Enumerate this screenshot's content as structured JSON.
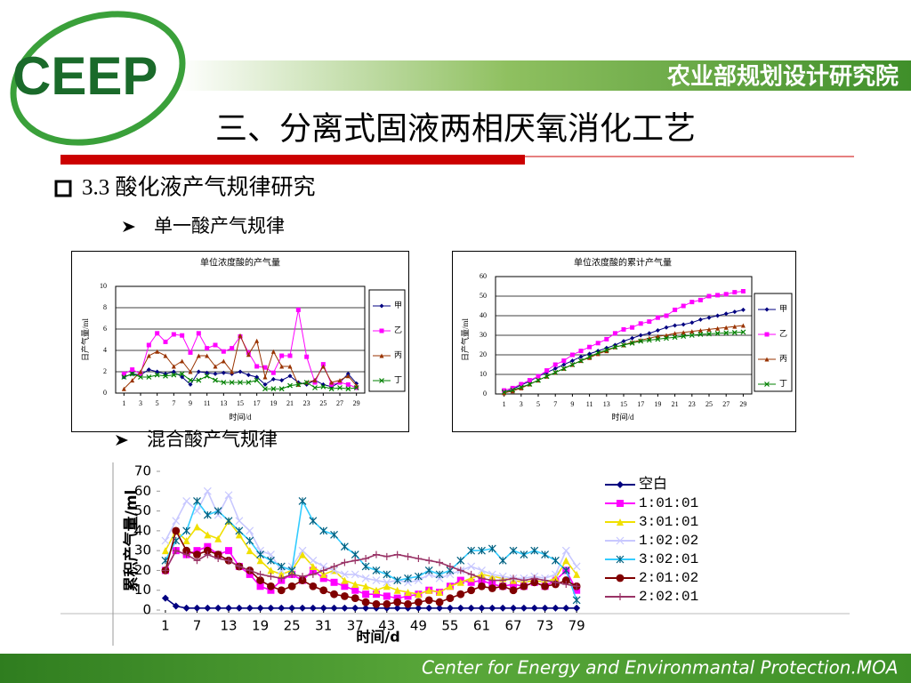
{
  "header": {
    "logo": "CEEP",
    "org": "农业部规划设计研究院",
    "title": "三、分离式固液两相厌氧消化工艺"
  },
  "bullets": {
    "section": "3.3 酸化液产气规律研究",
    "item1": "单一酸产气规律",
    "item2": "混合酸产气规律"
  },
  "footer": "Center for Energy and Environmantal Protection.MOA",
  "chart_data": [
    {
      "type": "line",
      "title": "单位浓度酸的产气量",
      "x_label": "时间/d",
      "y_label": "日产气量/ml",
      "x": [
        1,
        2,
        3,
        4,
        5,
        6,
        7,
        8,
        9,
        10,
        11,
        12,
        13,
        14,
        15,
        16,
        17,
        18,
        19,
        20,
        21,
        22,
        23,
        24,
        25,
        26,
        27,
        28,
        29
      ],
      "xlim": [
        0,
        30
      ],
      "xticks": [
        1,
        3,
        5,
        7,
        9,
        11,
        13,
        15,
        17,
        19,
        21,
        23,
        25,
        27,
        29
      ],
      "ylim": [
        0,
        10
      ],
      "yticks": [
        0,
        2,
        4,
        6,
        8,
        10
      ],
      "grid": true,
      "legend": "right",
      "series": [
        {
          "name": "甲",
          "color": "#000080",
          "marker": "diamond",
          "values": [
            1.5,
            1.8,
            1.7,
            2.2,
            2.0,
            1.8,
            2.0,
            1.5,
            0.8,
            2.0,
            1.9,
            1.8,
            1.9,
            1.8,
            2.0,
            1.7,
            1.5,
            0.8,
            1.3,
            1.2,
            1.6,
            1.0,
            0.8,
            1.2,
            0.8,
            0.6,
            1.0,
            1.8,
            0.9
          ]
        },
        {
          "name": "乙",
          "color": "#ff00ff",
          "marker": "square",
          "values": [
            1.8,
            2.2,
            1.8,
            4.5,
            5.6,
            4.8,
            5.5,
            5.4,
            3.8,
            5.6,
            4.2,
            4.5,
            3.9,
            4.2,
            5.3,
            3.8,
            2.5,
            2.4,
            1.9,
            3.5,
            3.5,
            7.8,
            3.4,
            1.0,
            2.7,
            0.8,
            1.0,
            0.8,
            0.5
          ]
        },
        {
          "name": "丙",
          "color": "#993300",
          "marker": "triangle",
          "values": [
            0.4,
            1.2,
            2.0,
            3.5,
            3.9,
            3.5,
            2.5,
            3.0,
            2.0,
            3.5,
            3.5,
            2.5,
            3.0,
            2.0,
            5.4,
            3.6,
            4.9,
            1.5,
            3.9,
            2.5,
            2.5,
            0.8,
            1.0,
            1.2,
            2.5,
            1.0,
            1.2,
            1.6,
            0.7
          ]
        },
        {
          "name": "丁",
          "color": "#008000",
          "marker": "x",
          "values": [
            1.5,
            1.8,
            1.5,
            1.5,
            1.7,
            1.6,
            1.7,
            1.8,
            1.2,
            1.2,
            1.6,
            1.2,
            1.0,
            1.0,
            1.0,
            1.0,
            1.2,
            0.4,
            0.4,
            0.4,
            0.7,
            0.8,
            1.0,
            0.5,
            0.6,
            0.4,
            0.5,
            0.4,
            0.5
          ]
        }
      ]
    },
    {
      "type": "line",
      "title": "单位浓度酸的累计产气量",
      "x_label": "时间/d",
      "y_label": "日产气量/ml",
      "x": [
        1,
        2,
        3,
        4,
        5,
        6,
        7,
        8,
        9,
        10,
        11,
        12,
        13,
        14,
        15,
        16,
        17,
        18,
        19,
        20,
        21,
        22,
        23,
        24,
        25,
        26,
        27,
        28,
        29
      ],
      "xlim": [
        0,
        30
      ],
      "xticks": [
        1,
        3,
        5,
        7,
        9,
        11,
        13,
        15,
        17,
        19,
        21,
        23,
        25,
        27,
        29
      ],
      "ylim": [
        0,
        60
      ],
      "yticks": [
        0,
        10,
        20,
        30,
        40,
        50,
        60
      ],
      "grid": true,
      "legend": "right",
      "series": [
        {
          "name": "甲",
          "color": "#000080",
          "marker": "diamond",
          "values": [
            1,
            2.5,
            4.5,
            6.5,
            9,
            11,
            13,
            15,
            17,
            19,
            20.5,
            22,
            23.5,
            25,
            27,
            28.5,
            30,
            31,
            32.5,
            34,
            35,
            35.5,
            36.5,
            38,
            39,
            40,
            41,
            42,
            43
          ]
        },
        {
          "name": "乙",
          "color": "#ff00ff",
          "marker": "square",
          "values": [
            1.8,
            3,
            5,
            7,
            9,
            12,
            15,
            17,
            20,
            22,
            24,
            26,
            28,
            31,
            33,
            34,
            36,
            37,
            39,
            40,
            43,
            45,
            47,
            48,
            50,
            50.5,
            51,
            52,
            52.5
          ]
        },
        {
          "name": "丙",
          "color": "#993300",
          "marker": "triangle",
          "values": [
            0.5,
            1.5,
            3,
            5,
            7,
            9,
            11,
            13,
            15,
            17,
            18.5,
            20.5,
            22,
            24,
            25,
            26.5,
            27.5,
            28.5,
            29.5,
            30,
            31,
            31.5,
            32,
            32.5,
            33,
            33.5,
            34,
            34.5,
            35
          ]
        },
        {
          "name": "丁",
          "color": "#008000",
          "marker": "x",
          "values": [
            1,
            2,
            3.5,
            5,
            7,
            9,
            11,
            13,
            15,
            17,
            19,
            21,
            22.5,
            24,
            25,
            26,
            27,
            27.5,
            28,
            28.5,
            29,
            29.5,
            30,
            30.5,
            30.7,
            31,
            31.2,
            31.4,
            31.6
          ]
        }
      ]
    },
    {
      "type": "line",
      "x_label": "时间/d",
      "y_label": "累积产气量/ml",
      "x": [
        1,
        3,
        5,
        7,
        9,
        11,
        13,
        15,
        17,
        19,
        21,
        23,
        25,
        27,
        29,
        31,
        33,
        35,
        37,
        39,
        41,
        43,
        45,
        47,
        49,
        51,
        53,
        55,
        57,
        59,
        61,
        63,
        65,
        67,
        69,
        71,
        73,
        75,
        77,
        79
      ],
      "xlim": [
        0,
        81
      ],
      "xticks": [
        1,
        7,
        13,
        19,
        25,
        31,
        37,
        43,
        49,
        55,
        61,
        67,
        73,
        79
      ],
      "ylim": [
        0,
        70
      ],
      "yticks": [
        0,
        10,
        20,
        30,
        40,
        50,
        60,
        70
      ],
      "grid": false,
      "legend": "right",
      "series": [
        {
          "name": "空白",
          "color": "#000080",
          "marker": "diamond",
          "values": [
            6,
            2,
            1,
            1,
            1,
            1,
            1,
            1,
            1,
            1,
            1,
            1,
            1,
            1,
            1,
            1,
            1,
            1,
            1,
            1,
            1,
            1,
            1,
            1,
            1,
            1,
            1,
            1,
            1,
            1,
            1,
            1,
            1,
            1,
            1,
            1,
            1,
            1,
            1,
            1
          ]
        },
        {
          "name": "1:01:01",
          "color": "#ff00ff",
          "marker": "square",
          "values": [
            20,
            30,
            28,
            30,
            32,
            28,
            30,
            22,
            18,
            12,
            10,
            15,
            18,
            15,
            20,
            16,
            14,
            12,
            10,
            8,
            8,
            7,
            6,
            7,
            8,
            10,
            9,
            12,
            15,
            14,
            15,
            13,
            12,
            13,
            12,
            14,
            12,
            15,
            20,
            10
          ]
        },
        {
          "name": "3:01:01",
          "color": "#f0e000",
          "marker": "triangle",
          "values": [
            30,
            40,
            35,
            42,
            38,
            36,
            45,
            38,
            30,
            25,
            20,
            18,
            20,
            28,
            22,
            18,
            20,
            15,
            13,
            12,
            10,
            12,
            10,
            9,
            8,
            10,
            9,
            12,
            14,
            16,
            18,
            17,
            16,
            15,
            14,
            15,
            14,
            16,
            25,
            18
          ]
        },
        {
          "name": "1:02:02",
          "color": "#c8c8ff",
          "marker": "x",
          "values": [
            35,
            45,
            55,
            50,
            60,
            48,
            58,
            45,
            40,
            30,
            28,
            20,
            22,
            30,
            25,
            22,
            20,
            18,
            18,
            16,
            15,
            14,
            15,
            14,
            15,
            18,
            16,
            18,
            20,
            22,
            20,
            18,
            17,
            16,
            16,
            17,
            16,
            18,
            30,
            22
          ]
        },
        {
          "name": "3:02:01",
          "color": "#33ccff",
          "marker": "star",
          "values": [
            25,
            35,
            40,
            55,
            48,
            50,
            45,
            40,
            35,
            28,
            25,
            22,
            20,
            55,
            45,
            40,
            38,
            32,
            28,
            22,
            20,
            18,
            15,
            16,
            17,
            20,
            18,
            20,
            25,
            30,
            30,
            31,
            25,
            30,
            28,
            30,
            28,
            25,
            20,
            5
          ]
        },
        {
          "name": "2:01:02",
          "color": "#800000",
          "marker": "circle",
          "values": [
            20,
            40,
            30,
            28,
            30,
            28,
            25,
            22,
            20,
            15,
            12,
            10,
            12,
            15,
            12,
            10,
            8,
            7,
            6,
            4,
            3,
            3,
            4,
            3,
            4,
            5,
            4,
            6,
            8,
            10,
            12,
            11,
            12,
            10,
            12,
            14,
            12,
            13,
            15,
            12
          ]
        },
        {
          "name": "2:02:01",
          "color": "#993366",
          "marker": "plus",
          "values": [
            20,
            30,
            28,
            25,
            28,
            26,
            25,
            22,
            20,
            18,
            17,
            16,
            18,
            17,
            18,
            20,
            22,
            24,
            25,
            26,
            28,
            27,
            28,
            27,
            26,
            25,
            24,
            22,
            20,
            18,
            16,
            15,
            15,
            16,
            15,
            16,
            15,
            14,
            13,
            12
          ]
        }
      ]
    }
  ]
}
